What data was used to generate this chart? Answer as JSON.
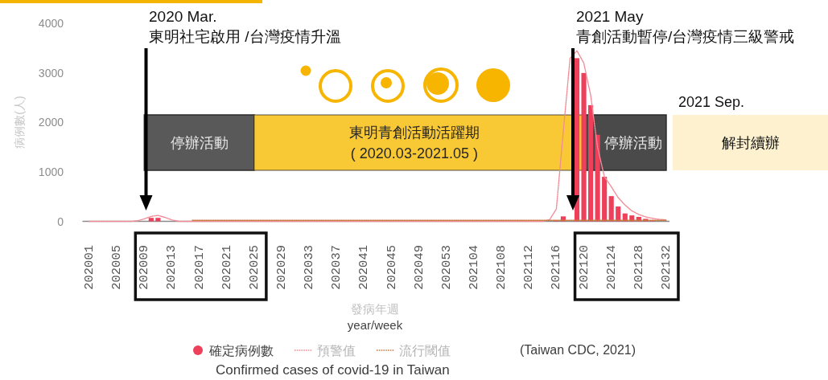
{
  "chart_data": {
    "type": "bar",
    "xlabel": "發病年週\nyear/week",
    "ylabel": "病例數(人)",
    "categories": [
      "202001",
      null,
      null,
      null,
      "202005",
      null,
      null,
      null,
      "202009",
      null,
      null,
      null,
      "202013",
      null,
      null,
      null,
      "202017",
      null,
      null,
      null,
      "202021",
      null,
      null,
      null,
      "202025",
      null,
      null,
      null,
      "202029",
      null,
      null,
      null,
      "202033",
      null,
      null,
      null,
      "202037",
      null,
      null,
      null,
      "202041",
      null,
      null,
      null,
      "202045",
      null,
      null,
      null,
      "202049",
      null,
      null,
      null,
      "202053",
      null,
      null,
      null,
      "202104",
      null,
      null,
      null,
      "202108",
      null,
      null,
      null,
      "202112",
      null,
      null,
      null,
      "202116",
      null,
      null,
      null,
      "202120",
      null,
      null,
      null,
      "202124",
      null,
      null,
      null,
      "202128",
      null,
      null,
      null,
      "202132"
    ],
    "series": [
      {
        "name": "確定病例數",
        "color": "#ee3f5b",
        "values": [
          0,
          0,
          0,
          0,
          0,
          0,
          0,
          0,
          null,
          70,
          70,
          0,
          0,
          0,
          0,
          0,
          0,
          0,
          0,
          0,
          0,
          0,
          0,
          0,
          0,
          0,
          0,
          0,
          0,
          0,
          0,
          0,
          0,
          0,
          0,
          0,
          0,
          0,
          0,
          0,
          0,
          0,
          0,
          0,
          0,
          0,
          0,
          0,
          0,
          0,
          0,
          0,
          0,
          0,
          0,
          0,
          0,
          0,
          0,
          0,
          0,
          0,
          0,
          0,
          0,
          0,
          0,
          0,
          20,
          100,
          null,
          3300,
          3000,
          2350,
          1750,
          900,
          510,
          300,
          160,
          120,
          90,
          50,
          20,
          0,
          0
        ]
      },
      {
        "name": "預警值",
        "type": "line",
        "color": "#f28b96",
        "values": [
          0,
          0,
          0,
          0,
          0,
          0,
          0,
          10,
          50,
          100,
          120,
          80,
          30,
          0,
          0,
          0,
          0,
          0,
          0,
          0,
          0,
          0,
          0,
          0,
          0,
          0,
          0,
          0,
          0,
          0,
          0,
          0,
          0,
          0,
          0,
          0,
          0,
          0,
          0,
          0,
          0,
          0,
          0,
          0,
          0,
          0,
          0,
          0,
          0,
          0,
          0,
          0,
          0,
          0,
          0,
          0,
          0,
          0,
          0,
          0,
          0,
          0,
          0,
          0,
          0,
          0,
          0,
          30,
          250,
          1800,
          3300,
          3450,
          3200,
          2550,
          1500,
          900,
          700,
          480,
          330,
          210,
          140,
          90,
          60,
          40,
          30
        ]
      },
      {
        "name": "流行閾值",
        "type": "line",
        "color": "#c97a40",
        "values": [
          null,
          null,
          null,
          null,
          null,
          null,
          null,
          null,
          null,
          null,
          null,
          null,
          null,
          null,
          null,
          20,
          20,
          20,
          20,
          20,
          20,
          20,
          20,
          20,
          20,
          20,
          20,
          20,
          20,
          20,
          20,
          20,
          20,
          20,
          20,
          20,
          20,
          20,
          20,
          20,
          20,
          20,
          20,
          20,
          20,
          20,
          20,
          20,
          20,
          20,
          20,
          20,
          20,
          20,
          20,
          20,
          20,
          20,
          20,
          20,
          20,
          20,
          20,
          20,
          20,
          20,
          20,
          20,
          20,
          20,
          20,
          20,
          20,
          20,
          20,
          20,
          20,
          20,
          20,
          20,
          20,
          20,
          20,
          20,
          20
        ]
      }
    ],
    "ylim": [
      0,
      4000
    ],
    "yticks": [
      0,
      1000,
      2000,
      3000,
      4000
    ],
    "line_style": "dotted",
    "legend": "bottom",
    "bands": [
      {
        "axis": "x",
        "from": "202009",
        "to": "202025",
        "label": "停辦活動",
        "color": "#595959"
      },
      {
        "axis": "x",
        "from": "202025",
        "to": "202120",
        "label": "東明青創活動活躍期\n( 2020.03-2021.05 )",
        "color": "#f9c835"
      },
      {
        "axis": "x",
        "from": "202120",
        "to": "202132",
        "label": "停辦活動",
        "color": "#4a4a4a"
      }
    ],
    "annotations": [
      "2020 Mar.\n東明社宅啟用 /台灣疫情升溫",
      "2021 May\n青創活動暫停/台灣疫情三級警戒",
      "2021 Sep.",
      "解封續辦",
      "(Taiwan CDC, 2021)",
      "Confirmed cases of covid-19  in Taiwan"
    ]
  }
}
